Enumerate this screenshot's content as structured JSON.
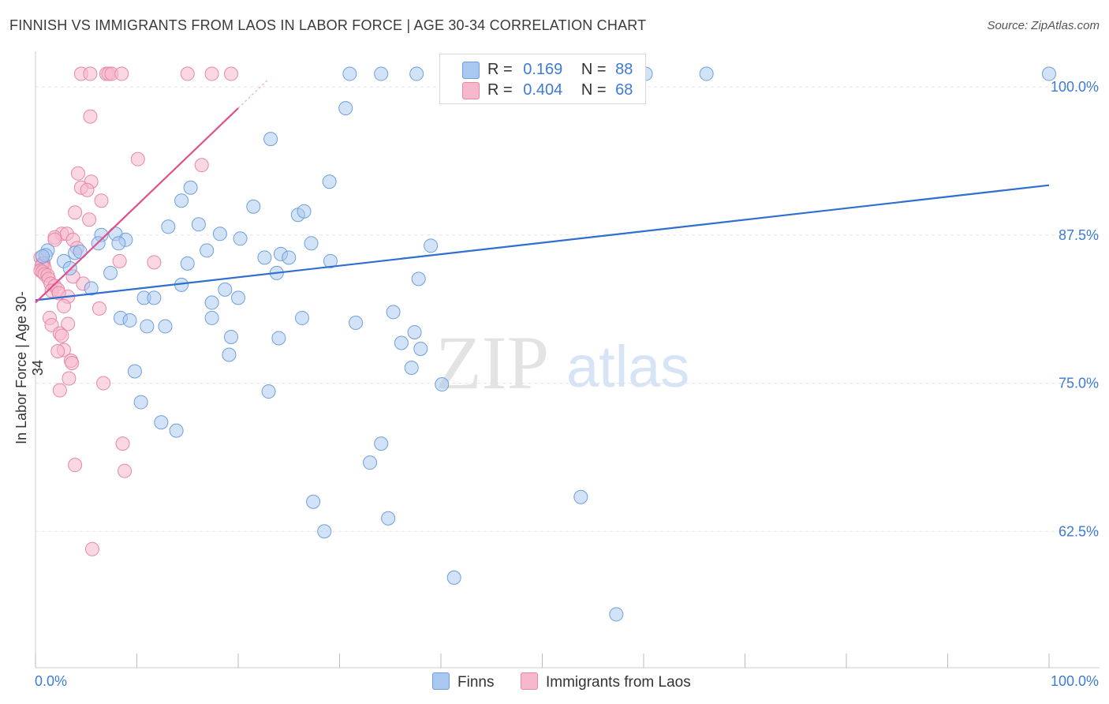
{
  "title": "FINNISH VS IMMIGRANTS FROM LAOS IN LABOR FORCE | AGE 30-34 CORRELATION CHART",
  "source": "Source: ZipAtlas.com",
  "watermark": {
    "zip": "ZIP",
    "atlas": "atlas"
  },
  "legend": {
    "rows": [
      {
        "r_label": "R =",
        "r_value": "0.169",
        "n_label": "N =",
        "n_value": "88"
      },
      {
        "r_label": "R =",
        "r_value": "0.404",
        "n_label": "N =",
        "n_value": "68"
      }
    ]
  },
  "bottom_legend": {
    "series1": "Finns",
    "series2": "Immigrants from Laos"
  },
  "colors": {
    "finns_fill": "#a8c8f0",
    "finns_stroke": "#6f9fdc",
    "finns_line": "#2f6fd0",
    "laos_fill": "#f5b8cc",
    "laos_stroke": "#e886a6",
    "laos_line": "#e0508a",
    "axis_text": "#3e7bd6",
    "grid": "#e6e6e6"
  },
  "chart_data": {
    "type": "scatter",
    "ylabel": "In Labor Force | Age 30-34",
    "xlim": [
      0,
      100
    ],
    "ylim": [
      51,
      103
    ],
    "x_tick_labels": [
      "0.0%",
      "100.0%"
    ],
    "y_ticks": [
      62.5,
      75.0,
      87.5,
      100.0
    ],
    "y_tick_labels": [
      "62.5%",
      "75.0%",
      "87.5%",
      "100.0%"
    ],
    "grid": true,
    "legend_placement": "top-center",
    "series": [
      {
        "name": "Finns",
        "r": 0.169,
        "n": 88,
        "trend": {
          "x": [
            0,
            100
          ],
          "y": [
            82.0,
            91.7
          ]
        },
        "points": [
          [
            31.0,
            101.1
          ],
          [
            34.1,
            101.1
          ],
          [
            37.6,
            101.1
          ],
          [
            54.1,
            101.1
          ],
          [
            60.2,
            101.1
          ],
          [
            66.2,
            101.1
          ],
          [
            100,
            101.1
          ],
          [
            30.6,
            98.2
          ],
          [
            23.2,
            95.6
          ],
          [
            29.0,
            92.0
          ],
          [
            15.3,
            91.5
          ],
          [
            14.4,
            90.4
          ],
          [
            21.5,
            89.9
          ],
          [
            25.9,
            89.2
          ],
          [
            26.5,
            89.5
          ],
          [
            13.1,
            88.2
          ],
          [
            18.2,
            87.6
          ],
          [
            16.1,
            88.4
          ],
          [
            20.2,
            87.2
          ],
          [
            7.9,
            87.6
          ],
          [
            6.5,
            87.5
          ],
          [
            8.9,
            87.1
          ],
          [
            6.2,
            86.8
          ],
          [
            8.2,
            86.8
          ],
          [
            27.2,
            86.8
          ],
          [
            39.0,
            86.6
          ],
          [
            1.2,
            86.2
          ],
          [
            3.9,
            86.0
          ],
          [
            1.0,
            85.8
          ],
          [
            0.7,
            85.7
          ],
          [
            4.4,
            86.1
          ],
          [
            2.8,
            85.3
          ],
          [
            16.9,
            86.2
          ],
          [
            24.2,
            85.9
          ],
          [
            22.6,
            85.6
          ],
          [
            25.0,
            85.6
          ],
          [
            15.0,
            85.1
          ],
          [
            29.1,
            85.3
          ],
          [
            3.4,
            84.7
          ],
          [
            7.4,
            84.3
          ],
          [
            23.8,
            84.3
          ],
          [
            14.4,
            83.3
          ],
          [
            37.8,
            83.8
          ],
          [
            5.5,
            83.0
          ],
          [
            18.7,
            82.9
          ],
          [
            10.7,
            82.2
          ],
          [
            11.7,
            82.2
          ],
          [
            20.0,
            82.2
          ],
          [
            17.4,
            81.8
          ],
          [
            35.3,
            81.0
          ],
          [
            8.4,
            80.5
          ],
          [
            9.3,
            80.3
          ],
          [
            17.4,
            80.5
          ],
          [
            26.3,
            80.5
          ],
          [
            31.6,
            80.1
          ],
          [
            11.0,
            79.8
          ],
          [
            12.8,
            79.8
          ],
          [
            36.1,
            78.4
          ],
          [
            19.3,
            78.9
          ],
          [
            24.0,
            78.8
          ],
          [
            37.4,
            79.3
          ],
          [
            38.0,
            77.9
          ],
          [
            19.1,
            77.4
          ],
          [
            37.1,
            76.3
          ],
          [
            9.8,
            76.0
          ],
          [
            40.1,
            74.9
          ],
          [
            23.0,
            74.3
          ],
          [
            10.4,
            73.4
          ],
          [
            12.4,
            71.7
          ],
          [
            13.9,
            71.0
          ],
          [
            34.1,
            69.9
          ],
          [
            33.0,
            68.3
          ],
          [
            53.8,
            65.4
          ],
          [
            27.4,
            65.0
          ],
          [
            34.8,
            63.6
          ],
          [
            28.5,
            62.5
          ],
          [
            41.3,
            58.6
          ],
          [
            57.3,
            55.5
          ]
        ]
      },
      {
        "name": "Immigrants from Laos",
        "r": 0.404,
        "n": 68,
        "trend": {
          "x": [
            0,
            20
          ],
          "y": [
            81.8,
            98.2
          ]
        },
        "points": [
          [
            4.5,
            101.1
          ],
          [
            5.4,
            101.1
          ],
          [
            7.0,
            101.1
          ],
          [
            7.2,
            101.1
          ],
          [
            7.5,
            101.1
          ],
          [
            8.5,
            101.1
          ],
          [
            15.0,
            101.1
          ],
          [
            17.4,
            101.1
          ],
          [
            19.3,
            101.1
          ],
          [
            5.4,
            97.5
          ],
          [
            10.1,
            93.9
          ],
          [
            16.4,
            93.4
          ],
          [
            4.2,
            92.7
          ],
          [
            5.5,
            92.0
          ],
          [
            4.5,
            91.5
          ],
          [
            5.1,
            91.3
          ],
          [
            6.5,
            90.4
          ],
          [
            3.9,
            89.4
          ],
          [
            5.3,
            88.8
          ],
          [
            2.6,
            87.6
          ],
          [
            3.1,
            87.6
          ],
          [
            1.9,
            87.3
          ],
          [
            1.9,
            87.1
          ],
          [
            3.7,
            87.1
          ],
          [
            4.1,
            86.4
          ],
          [
            8.3,
            85.3
          ],
          [
            11.7,
            85.2
          ],
          [
            0.5,
            85.6
          ],
          [
            0.8,
            85.1
          ],
          [
            0.7,
            85.1
          ],
          [
            0.6,
            84.9
          ],
          [
            0.9,
            84.7
          ],
          [
            0.5,
            84.5
          ],
          [
            0.7,
            84.4
          ],
          [
            0.9,
            84.2
          ],
          [
            1.2,
            84.1
          ],
          [
            3.7,
            84.0
          ],
          [
            1.3,
            83.8
          ],
          [
            4.7,
            83.4
          ],
          [
            1.5,
            83.4
          ],
          [
            1.9,
            83.2
          ],
          [
            1.6,
            82.8
          ],
          [
            2.2,
            82.9
          ],
          [
            3.2,
            82.3
          ],
          [
            2.3,
            82.6
          ],
          [
            6.3,
            81.3
          ],
          [
            2.8,
            81.5
          ],
          [
            1.4,
            80.5
          ],
          [
            3.2,
            80.0
          ],
          [
            1.6,
            79.9
          ],
          [
            2.4,
            79.2
          ],
          [
            2.6,
            79.0
          ],
          [
            2.8,
            77.8
          ],
          [
            2.2,
            77.7
          ],
          [
            3.5,
            76.9
          ],
          [
            3.6,
            76.7
          ],
          [
            3.3,
            75.4
          ],
          [
            6.7,
            75.0
          ],
          [
            2.4,
            74.4
          ],
          [
            8.6,
            69.9
          ],
          [
            3.9,
            68.1
          ],
          [
            8.8,
            67.6
          ],
          [
            5.6,
            61.0
          ]
        ]
      }
    ]
  }
}
